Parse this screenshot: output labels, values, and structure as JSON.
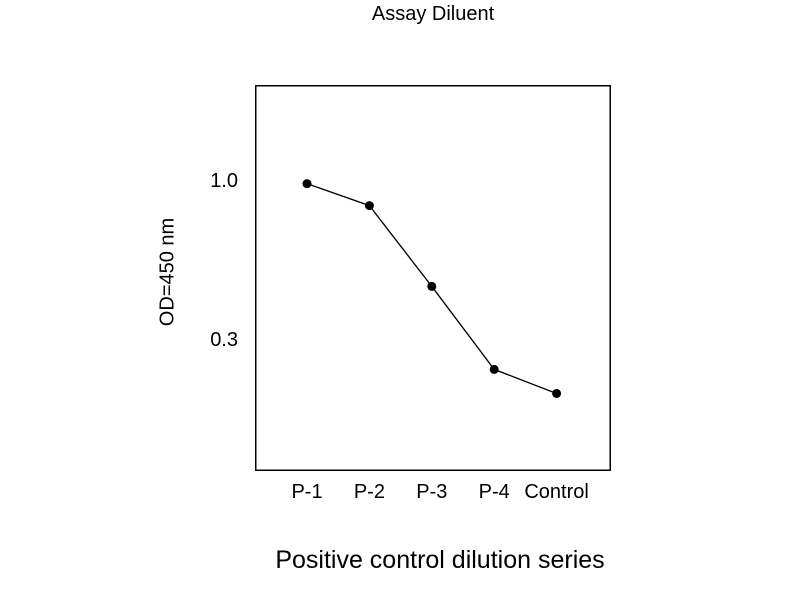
{
  "chart_data": {
    "type": "line",
    "title": "Assay Diluent",
    "xlabel": "Positive control dilution series",
    "ylabel": "OD=450 nm",
    "categories": [
      "P-1",
      "P-2",
      "P-3",
      "P-4",
      "Control"
    ],
    "values": [
      0.98,
      0.83,
      0.45,
      0.24,
      0.2
    ],
    "y_scale": "log",
    "y_tick_values": [
      1.0,
      0.3
    ],
    "y_tick_labels": [
      "1.0",
      "0.3"
    ],
    "grid": false,
    "legend": false,
    "marker": "filled-circle",
    "line_color": "#000000",
    "marker_color": "#000000",
    "frame_color": "#000000",
    "background_color": "#ffffff"
  }
}
